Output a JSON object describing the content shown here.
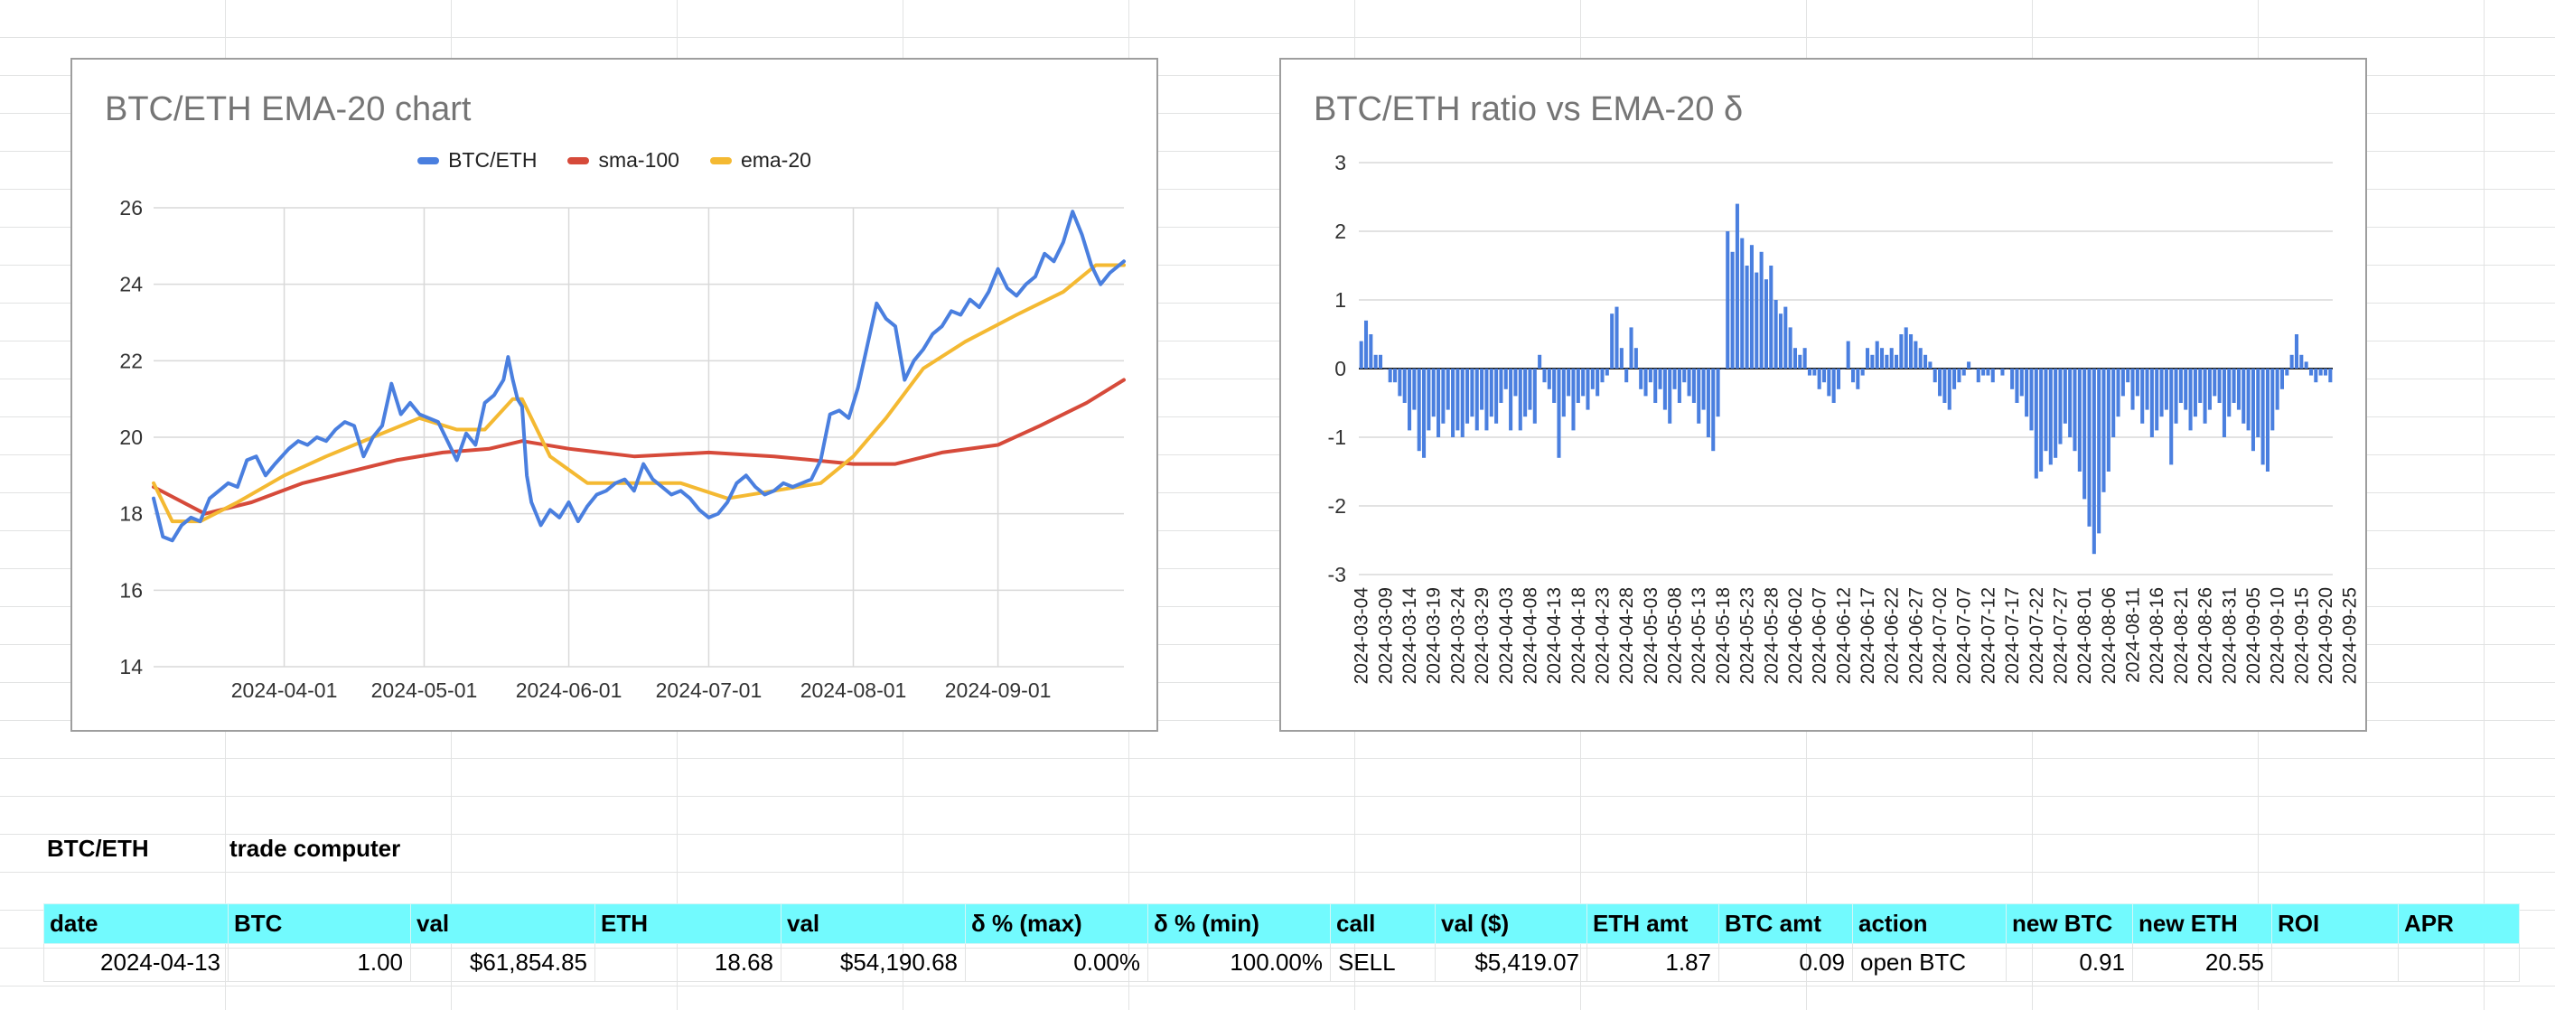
{
  "charts": {
    "ema_chart_title": "BTC/ETH EMA-20 chart",
    "delta_chart_title": "BTC/ETH ratio vs EMA-20 δ"
  },
  "chart_data": [
    {
      "type": "line",
      "title": "BTC/ETH EMA-20 chart",
      "xlabel": "",
      "ylabel": "",
      "ylim": [
        14,
        26
      ],
      "y_ticks": [
        14,
        16,
        18,
        20,
        22,
        24,
        26
      ],
      "x_tick_labels": [
        "2024-04-01",
        "2024-05-01",
        "2024-06-01",
        "2024-07-01",
        "2024-08-01",
        "2024-09-01"
      ],
      "x_range": [
        "2024-03-04",
        "2024-09-28"
      ],
      "grid": true,
      "legend_position": "top",
      "series": [
        {
          "name": "BTC/ETH",
          "color": "#4a7fdf",
          "points": [
            [
              "2024-03-04",
              18.4
            ],
            [
              "2024-03-06",
              17.4
            ],
            [
              "2024-03-08",
              17.3
            ],
            [
              "2024-03-10",
              17.7
            ],
            [
              "2024-03-12",
              17.9
            ],
            [
              "2024-03-14",
              17.8
            ],
            [
              "2024-03-16",
              18.4
            ],
            [
              "2024-03-18",
              18.6
            ],
            [
              "2024-03-20",
              18.8
            ],
            [
              "2024-03-22",
              18.7
            ],
            [
              "2024-03-24",
              19.4
            ],
            [
              "2024-03-26",
              19.5
            ],
            [
              "2024-03-28",
              19.0
            ],
            [
              "2024-03-30",
              19.3
            ],
            [
              "2024-04-02",
              19.7
            ],
            [
              "2024-04-04",
              19.9
            ],
            [
              "2024-04-06",
              19.8
            ],
            [
              "2024-04-08",
              20.0
            ],
            [
              "2024-04-10",
              19.9
            ],
            [
              "2024-04-12",
              20.2
            ],
            [
              "2024-04-14",
              20.4
            ],
            [
              "2024-04-16",
              20.3
            ],
            [
              "2024-04-18",
              19.5
            ],
            [
              "2024-04-20",
              20.0
            ],
            [
              "2024-04-22",
              20.3
            ],
            [
              "2024-04-24",
              21.4
            ],
            [
              "2024-04-26",
              20.6
            ],
            [
              "2024-04-28",
              20.9
            ],
            [
              "2024-04-30",
              20.6
            ],
            [
              "2024-05-02",
              20.5
            ],
            [
              "2024-05-04",
              20.4
            ],
            [
              "2024-05-06",
              19.9
            ],
            [
              "2024-05-08",
              19.4
            ],
            [
              "2024-05-10",
              20.1
            ],
            [
              "2024-05-12",
              19.8
            ],
            [
              "2024-05-14",
              20.9
            ],
            [
              "2024-05-16",
              21.1
            ],
            [
              "2024-05-18",
              21.5
            ],
            [
              "2024-05-19",
              22.1
            ],
            [
              "2024-05-20",
              21.5
            ],
            [
              "2024-05-21",
              21.0
            ],
            [
              "2024-05-22",
              20.8
            ],
            [
              "2024-05-23",
              19.0
            ],
            [
              "2024-05-24",
              18.3
            ],
            [
              "2024-05-26",
              17.7
            ],
            [
              "2024-05-28",
              18.1
            ],
            [
              "2024-05-30",
              17.9
            ],
            [
              "2024-06-01",
              18.3
            ],
            [
              "2024-06-03",
              17.8
            ],
            [
              "2024-06-05",
              18.2
            ],
            [
              "2024-06-07",
              18.5
            ],
            [
              "2024-06-09",
              18.6
            ],
            [
              "2024-06-11",
              18.8
            ],
            [
              "2024-06-13",
              18.9
            ],
            [
              "2024-06-15",
              18.6
            ],
            [
              "2024-06-17",
              19.3
            ],
            [
              "2024-06-19",
              18.9
            ],
            [
              "2024-06-21",
              18.7
            ],
            [
              "2024-06-23",
              18.5
            ],
            [
              "2024-06-25",
              18.6
            ],
            [
              "2024-06-27",
              18.4
            ],
            [
              "2024-06-29",
              18.1
            ],
            [
              "2024-07-01",
              17.9
            ],
            [
              "2024-07-03",
              18.0
            ],
            [
              "2024-07-05",
              18.3
            ],
            [
              "2024-07-07",
              18.8
            ],
            [
              "2024-07-09",
              19.0
            ],
            [
              "2024-07-11",
              18.7
            ],
            [
              "2024-07-13",
              18.5
            ],
            [
              "2024-07-15",
              18.6
            ],
            [
              "2024-07-17",
              18.8
            ],
            [
              "2024-07-19",
              18.7
            ],
            [
              "2024-07-21",
              18.8
            ],
            [
              "2024-07-23",
              18.9
            ],
            [
              "2024-07-25",
              19.4
            ],
            [
              "2024-07-27",
              20.6
            ],
            [
              "2024-07-29",
              20.7
            ],
            [
              "2024-07-31",
              20.5
            ],
            [
              "2024-08-02",
              21.3
            ],
            [
              "2024-08-04",
              22.4
            ],
            [
              "2024-08-06",
              23.5
            ],
            [
              "2024-08-08",
              23.1
            ],
            [
              "2024-08-10",
              22.9
            ],
            [
              "2024-08-12",
              21.5
            ],
            [
              "2024-08-14",
              22.0
            ],
            [
              "2024-08-16",
              22.3
            ],
            [
              "2024-08-18",
              22.7
            ],
            [
              "2024-08-20",
              22.9
            ],
            [
              "2024-08-22",
              23.3
            ],
            [
              "2024-08-24",
              23.2
            ],
            [
              "2024-08-26",
              23.6
            ],
            [
              "2024-08-28",
              23.4
            ],
            [
              "2024-08-30",
              23.8
            ],
            [
              "2024-09-01",
              24.4
            ],
            [
              "2024-09-03",
              23.9
            ],
            [
              "2024-09-05",
              23.7
            ],
            [
              "2024-09-07",
              24.0
            ],
            [
              "2024-09-09",
              24.2
            ],
            [
              "2024-09-11",
              24.8
            ],
            [
              "2024-09-13",
              24.6
            ],
            [
              "2024-09-15",
              25.1
            ],
            [
              "2024-09-17",
              25.9
            ],
            [
              "2024-09-19",
              25.3
            ],
            [
              "2024-09-21",
              24.5
            ],
            [
              "2024-09-23",
              24.0
            ],
            [
              "2024-09-25",
              24.3
            ],
            [
              "2024-09-28",
              24.6
            ]
          ]
        },
        {
          "name": "sma-100",
          "color": "#d64a3a",
          "points": [
            [
              "2024-03-04",
              18.7
            ],
            [
              "2024-03-15",
              18.0
            ],
            [
              "2024-03-25",
              18.3
            ],
            [
              "2024-04-05",
              18.8
            ],
            [
              "2024-04-15",
              19.1
            ],
            [
              "2024-04-25",
              19.4
            ],
            [
              "2024-05-05",
              19.6
            ],
            [
              "2024-05-15",
              19.7
            ],
            [
              "2024-05-22",
              19.9
            ],
            [
              "2024-06-01",
              19.7
            ],
            [
              "2024-06-15",
              19.5
            ],
            [
              "2024-07-01",
              19.6
            ],
            [
              "2024-07-15",
              19.5
            ],
            [
              "2024-08-01",
              19.3
            ],
            [
              "2024-08-10",
              19.3
            ],
            [
              "2024-08-20",
              19.6
            ],
            [
              "2024-09-01",
              19.8
            ],
            [
              "2024-09-10",
              20.3
            ],
            [
              "2024-09-20",
              20.9
            ],
            [
              "2024-09-28",
              21.5
            ]
          ]
        },
        {
          "name": "ema-20",
          "color": "#f4b932",
          "points": [
            [
              "2024-03-04",
              18.8
            ],
            [
              "2024-03-08",
              17.8
            ],
            [
              "2024-03-14",
              17.8
            ],
            [
              "2024-03-22",
              18.3
            ],
            [
              "2024-04-01",
              19.0
            ],
            [
              "2024-04-10",
              19.5
            ],
            [
              "2024-04-20",
              20.0
            ],
            [
              "2024-04-30",
              20.5
            ],
            [
              "2024-05-08",
              20.2
            ],
            [
              "2024-05-14",
              20.2
            ],
            [
              "2024-05-20",
              21.0
            ],
            [
              "2024-05-22",
              21.0
            ],
            [
              "2024-05-28",
              19.5
            ],
            [
              "2024-06-05",
              18.8
            ],
            [
              "2024-06-15",
              18.8
            ],
            [
              "2024-06-25",
              18.8
            ],
            [
              "2024-07-05",
              18.4
            ],
            [
              "2024-07-15",
              18.6
            ],
            [
              "2024-07-25",
              18.8
            ],
            [
              "2024-08-01",
              19.5
            ],
            [
              "2024-08-08",
              20.5
            ],
            [
              "2024-08-16",
              21.8
            ],
            [
              "2024-08-25",
              22.5
            ],
            [
              "2024-09-05",
              23.2
            ],
            [
              "2024-09-15",
              23.8
            ],
            [
              "2024-09-22",
              24.5
            ],
            [
              "2024-09-28",
              24.5
            ]
          ]
        }
      ]
    },
    {
      "type": "bar",
      "title": "BTC/ETH ratio vs EMA-20 δ",
      "xlabel": "",
      "ylabel": "",
      "ylim": [
        -3,
        3
      ],
      "y_ticks": [
        -3,
        -2,
        -1,
        0,
        1,
        2,
        3
      ],
      "grid": true,
      "start_date": "2024-03-04",
      "x_tick_labels": [
        "2024-03-04",
        "2024-03-09",
        "2024-03-14",
        "2024-03-19",
        "2024-03-24",
        "2024-03-29",
        "2024-04-03",
        "2024-04-08",
        "2024-04-13",
        "2024-04-18",
        "2024-04-23",
        "2024-04-28",
        "2024-05-03",
        "2024-05-08",
        "2024-05-13",
        "2024-05-18",
        "2024-05-23",
        "2024-05-28",
        "2024-06-02",
        "2024-06-07",
        "2024-06-12",
        "2024-06-17",
        "2024-06-22",
        "2024-06-27",
        "2024-07-02",
        "2024-07-07",
        "2024-07-12",
        "2024-07-17",
        "2024-07-22",
        "2024-07-27",
        "2024-08-01",
        "2024-08-06",
        "2024-08-11",
        "2024-08-16",
        "2024-08-21",
        "2024-08-26",
        "2024-08-31",
        "2024-09-05",
        "2024-09-10",
        "2024-09-15",
        "2024-09-20",
        "2024-09-25"
      ],
      "color": "#4a7fdf",
      "values": [
        0.4,
        0.7,
        0.5,
        0.2,
        0.2,
        0.0,
        -0.2,
        -0.2,
        -0.4,
        -0.5,
        -0.9,
        -0.6,
        -1.2,
        -1.3,
        -0.9,
        -0.7,
        -1.0,
        -0.8,
        -0.6,
        -1.0,
        -0.9,
        -1.0,
        -0.8,
        -0.7,
        -0.9,
        -0.6,
        -0.9,
        -0.7,
        -0.8,
        -0.5,
        -0.3,
        -0.9,
        -0.4,
        -0.9,
        -0.7,
        -0.6,
        -0.8,
        0.2,
        -0.2,
        -0.3,
        -0.5,
        -1.3,
        -0.7,
        -0.4,
        -0.9,
        -0.5,
        -0.4,
        -0.6,
        -0.3,
        -0.4,
        -0.2,
        -0.1,
        0.8,
        0.9,
        0.3,
        -0.2,
        0.6,
        0.3,
        -0.3,
        -0.4,
        -0.2,
        -0.5,
        -0.3,
        -0.6,
        -0.8,
        -0.3,
        -0.5,
        -0.2,
        -0.4,
        -0.5,
        -0.8,
        -0.6,
        -1.0,
        -1.2,
        -0.7,
        0.0,
        2.0,
        1.7,
        2.4,
        1.9,
        1.5,
        1.8,
        1.4,
        1.7,
        1.3,
        1.5,
        1.0,
        0.8,
        0.9,
        0.6,
        0.3,
        0.2,
        0.3,
        -0.1,
        -0.1,
        -0.3,
        -0.2,
        -0.4,
        -0.5,
        -0.3,
        0.0,
        0.4,
        -0.2,
        -0.3,
        -0.1,
        0.3,
        0.2,
        0.4,
        0.3,
        0.2,
        0.3,
        0.2,
        0.5,
        0.6,
        0.5,
        0.4,
        0.3,
        0.2,
        0.1,
        -0.2,
        -0.4,
        -0.5,
        -0.6,
        -0.3,
        -0.2,
        -0.1,
        0.1,
        0.0,
        -0.2,
        -0.1,
        -0.1,
        -0.2,
        0.0,
        -0.1,
        0.0,
        -0.3,
        -0.5,
        -0.4,
        -0.7,
        -0.9,
        -1.6,
        -1.5,
        -1.2,
        -1.4,
        -1.3,
        -1.1,
        -0.8,
        -1.0,
        -1.2,
        -1.5,
        -1.9,
        -2.3,
        -2.7,
        -2.4,
        -1.8,
        -1.5,
        -1.0,
        -0.7,
        -0.4,
        -0.2,
        -0.6,
        -0.4,
        -0.8,
        -0.6,
        -1.0,
        -0.9,
        -0.7,
        -0.6,
        -1.4,
        -0.8,
        -0.5,
        -0.6,
        -0.9,
        -0.7,
        -0.5,
        -0.8,
        -0.6,
        -0.4,
        -0.5,
        -1.0,
        -0.7,
        -0.5,
        -0.6,
        -0.8,
        -0.9,
        -1.2,
        -1.0,
        -1.4,
        -1.5,
        -0.9,
        -0.6,
        -0.3,
        -0.1,
        0.2,
        0.5,
        0.2,
        0.1,
        -0.1,
        -0.2,
        -0.1,
        -0.1,
        -0.2
      ]
    }
  ],
  "labels": {
    "pair": "BTC/ETH",
    "computer": "trade computer"
  },
  "table": {
    "headers": [
      "date",
      "BTC",
      "val",
      "ETH",
      "val",
      "δ % (max)",
      "δ % (min)",
      "call",
      "val ($)",
      "ETH amt",
      "BTC amt",
      "action",
      "new BTC",
      "new ETH",
      "ROI",
      "APR"
    ],
    "rows": [
      [
        "2024-04-13",
        "1.00",
        "$61,854.85",
        "18.68",
        "$54,190.68",
        "0.00%",
        "100.00%",
        "SELL",
        "$5,419.07",
        "1.87",
        "0.09",
        "open BTC",
        "0.91",
        "20.55",
        "",
        ""
      ]
    ],
    "align": [
      "num",
      "num",
      "num",
      "num",
      "num",
      "num",
      "num",
      "txt",
      "num",
      "num",
      "num",
      "txt",
      "num",
      "num",
      "num",
      "num"
    ]
  },
  "colors": {
    "header_bg": "#72fafe",
    "btceth": "#4a7fdf",
    "sma": "#d64a3a",
    "ema": "#f4b932"
  }
}
